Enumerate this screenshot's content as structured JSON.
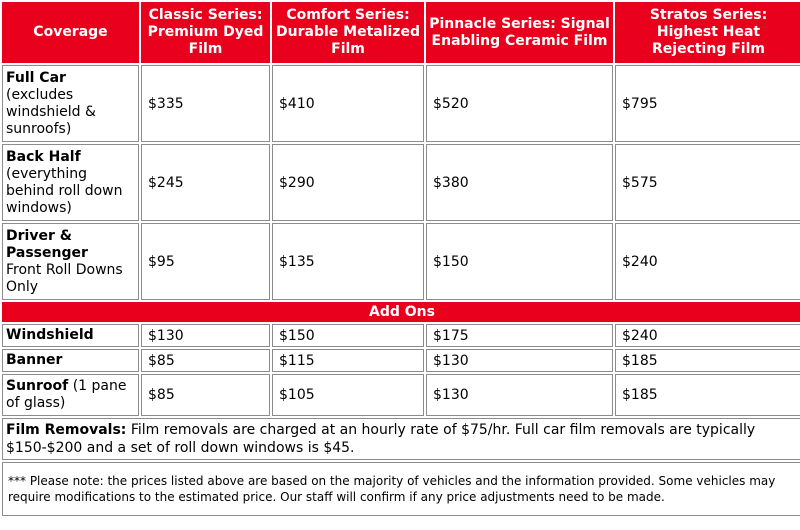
{
  "header": {
    "coverage": "Coverage",
    "classic": "Classic Series: Premium Dyed Film",
    "comfort": "Comfort Series: Durable Metalized Film",
    "pinnacle": "Pinnacle Series: Signal Enabling Ceramic Film",
    "stratos": "Stratos Series: Highest Heat Rejecting Film"
  },
  "rows": [
    {
      "title": "Full Car",
      "sub": "(excludes windshield & sunroofs)",
      "prices": [
        "$335",
        "$410",
        "$520",
        "$795"
      ]
    },
    {
      "title": "Back Half",
      "sub": "(everything behind roll down windows)",
      "prices": [
        "$245",
        "$290",
        "$380",
        "$575"
      ]
    },
    {
      "title": "Driver & Passenger",
      "sub": "Front Roll Downs Only",
      "prices": [
        "$95",
        "$135",
        "$150",
        "$240"
      ]
    }
  ],
  "addons_label": "Add Ons",
  "addons": [
    {
      "title": "Windshield",
      "sub": "",
      "prices": [
        "$130",
        "$150",
        "$175",
        "$240"
      ]
    },
    {
      "title": "Banner",
      "sub": "",
      "prices": [
        "$85",
        "$115",
        "$130",
        "$185"
      ]
    },
    {
      "title": "Sunroof",
      "sub": " (1 pane of glass)",
      "prices": [
        "$85",
        "$105",
        "$130",
        "$185"
      ]
    }
  ],
  "film_removals": {
    "label": "Film Removals:",
    "text": " Film removals are charged at an hourly rate of $75/hr. Full car film removals are typically $150-$200 and a set of roll down windows is $45."
  },
  "note": " *** Please note: the prices listed above are based on the majority of vehicles and the information provided. Some vehicles may require modifications to the estimated price. Our staff will confirm if any price adjustments need to be made.",
  "colors": {
    "header_red": "#e8001c",
    "border": "#8c8c8c"
  }
}
